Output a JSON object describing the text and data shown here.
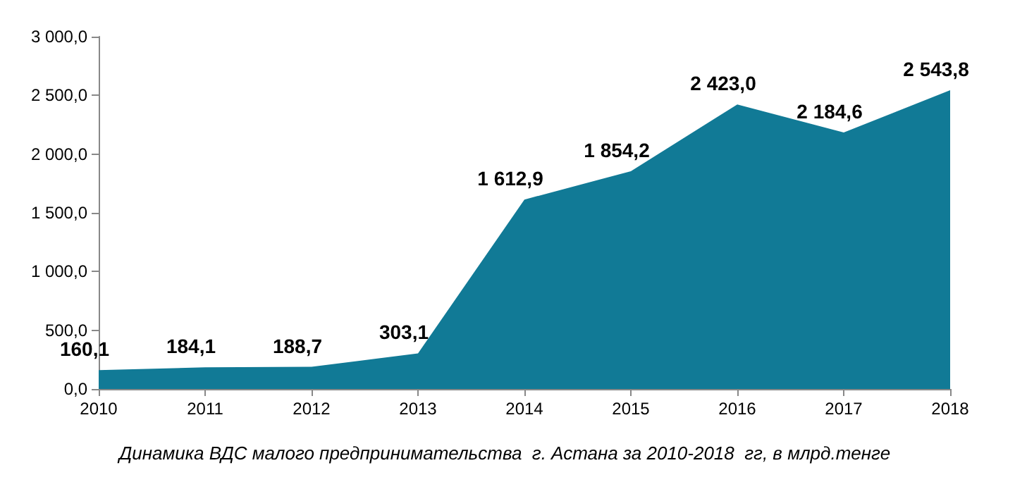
{
  "chart_data": {
    "type": "area",
    "categories": [
      "2010",
      "2011",
      "2012",
      "2013",
      "2014",
      "2015",
      "2016",
      "2017",
      "2018"
    ],
    "series": [
      {
        "color": "#117a96",
        "values": [
          160.1,
          184.1,
          188.7,
          303.1,
          1612.9,
          1854.2,
          2423.0,
          2184.6,
          2543.8
        ],
        "value_labels": [
          "160,1",
          "184,1",
          "188,7",
          "303,1",
          "1 612,9",
          "1 854,2",
          "2 423,0",
          "2 184,6",
          "2 543,8"
        ]
      }
    ],
    "ylim": [
      0,
      3000
    ],
    "yticks": [
      {
        "value": 0,
        "label": "0,0"
      },
      {
        "value": 500,
        "label": "500,0"
      },
      {
        "value": 1000,
        "label": "1 000,0"
      },
      {
        "value": 1500,
        "label": "1 500,0"
      },
      {
        "value": 2000,
        "label": "2 000,0"
      },
      {
        "value": 2500,
        "label": "2 500,0"
      },
      {
        "value": 3000,
        "label": "3 000,0"
      }
    ],
    "grid": false,
    "annotations": [
      "Динамика ВДС малого предпринимательства  г. Астана за 2010-2018  гг, в млрд.тенге"
    ]
  }
}
